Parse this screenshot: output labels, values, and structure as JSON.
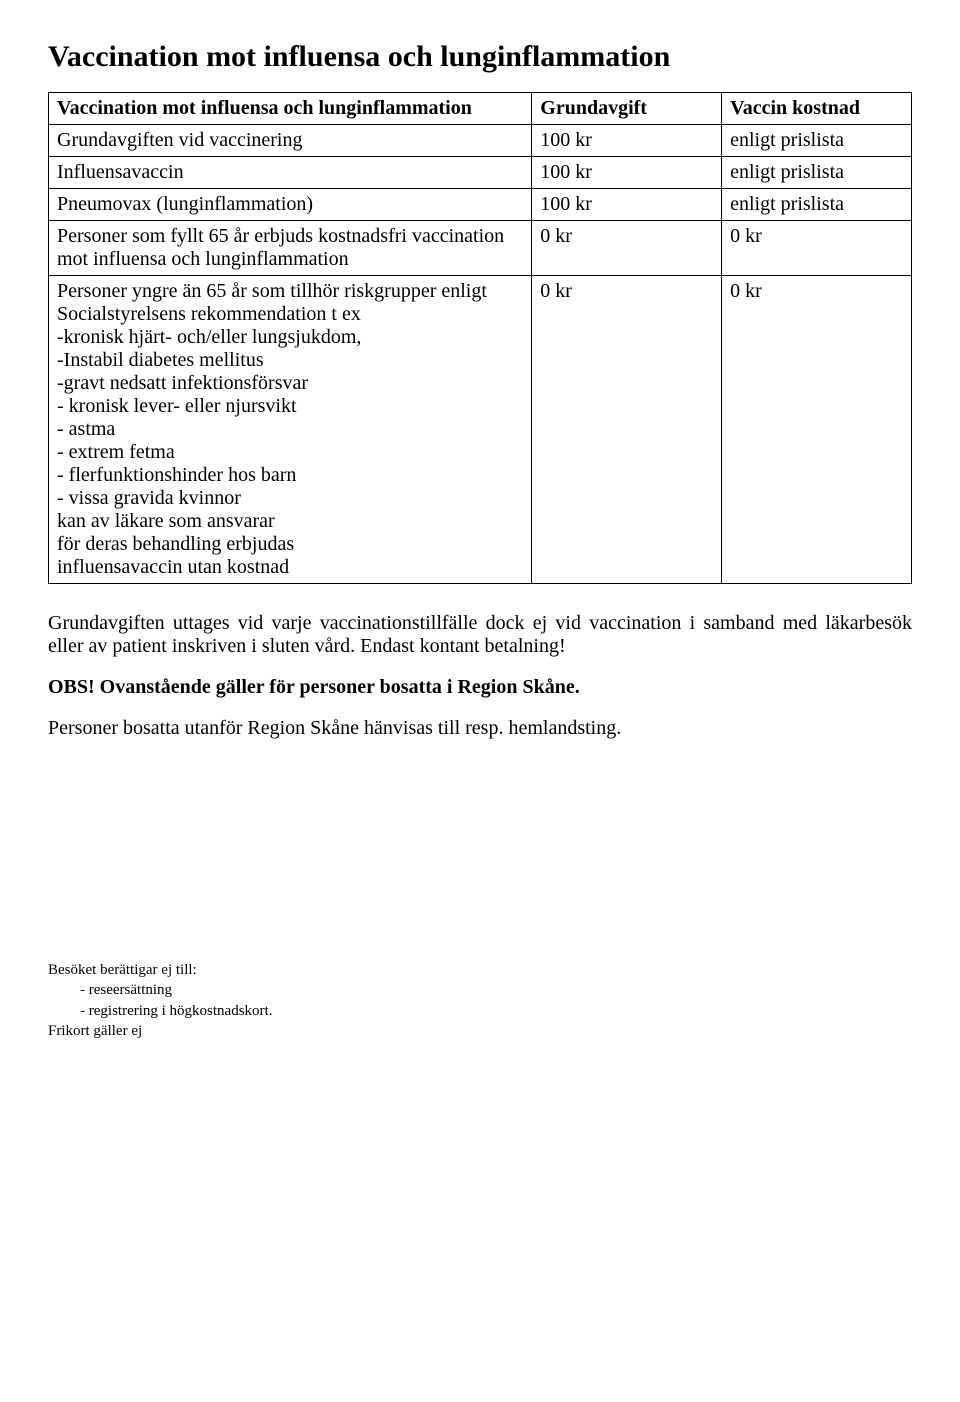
{
  "title": "Vaccination mot influensa och lunginflammation",
  "table": {
    "header": {
      "desc": "Vaccination mot influensa och lunginflammation",
      "fee": "Grundavgift",
      "cost": "Vaccin kostnad"
    },
    "rows": [
      {
        "desc": "Grundavgiften vid vaccinering",
        "fee": "100 kr",
        "cost": "enligt prislista"
      },
      {
        "desc": "Influensavaccin",
        "fee": "100 kr",
        "cost": "enligt prislista"
      },
      {
        "desc": "Pneumovax (lunginflammation)",
        "fee": "100 kr",
        "cost": "enligt prislista"
      },
      {
        "desc": "Personer som fyllt 65 år erbjuds kostnadsfri vaccination mot influensa och lunginflammation",
        "fee": "0 kr",
        "cost": "0 kr"
      },
      {
        "desc": "Personer yngre än 65 år som tillhör riskgrupper enligt Socialstyrelsens rekommendation t ex\n-kronisk hjärt- och/eller lungsjukdom,\n-Instabil diabetes mellitus\n-gravt nedsatt infektionsförsvar\n- kronisk lever- eller njursvikt\n- astma\n- extrem fetma\n- flerfunktionshinder hos barn\n- vissa gravida kvinnor\nkan av läkare som ansvarar\nför deras behandling erbjudas\ninfluensavaccin utan kostnad",
        "fee": "0 kr",
        "cost": "0 kr"
      }
    ]
  },
  "para1": "Grundavgiften uttages vid varje vaccinationstillfälle dock ej vid vaccination i samband med läkarbesök eller av patient inskriven i sluten vård. Endast kontant betalning!",
  "para2": "OBS! Ovanstående gäller för personer bosatta i Region Skåne.",
  "para3": "Personer bosatta utanför Region Skåne hänvisas till resp. hemlandsting.",
  "footnote": {
    "lead": "Besöket berättigar ej till:",
    "items": [
      "-    reseersättning",
      "-    registrering i högkostnadskort."
    ],
    "final": "Frikort gäller ej"
  }
}
